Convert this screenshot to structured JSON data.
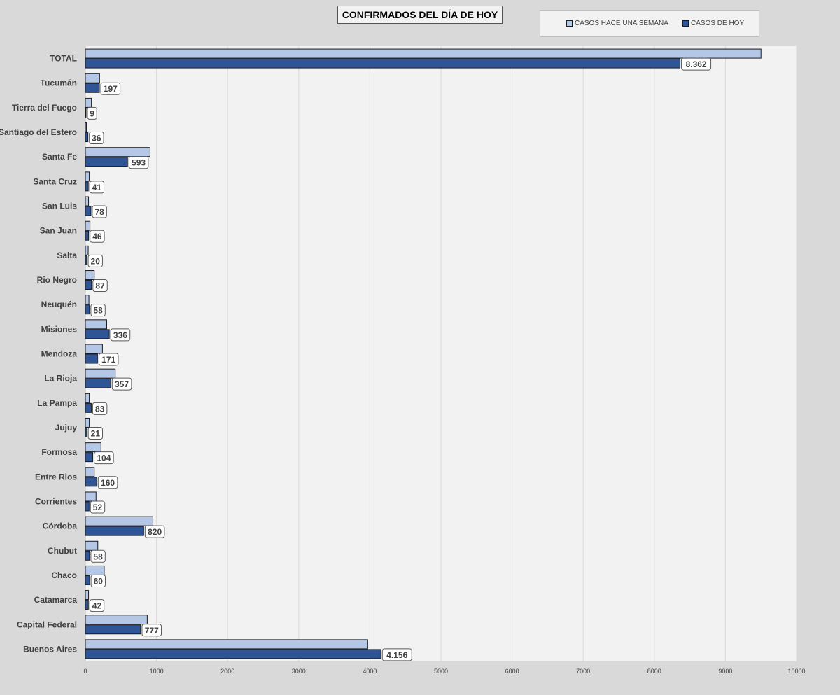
{
  "chart_data": {
    "type": "bar",
    "orientation": "horizontal",
    "title": "CONFIRMADOS DEL DÍA DE HOY",
    "categories": [
      "TOTAL",
      "Tucumán",
      "Tierra del Fuego",
      "Santiago del Estero",
      "Santa Fe",
      "Santa Cruz",
      "San Luis",
      "San Juan",
      "Salta",
      "Rio Negro",
      "Neuquén",
      "Misiones",
      "Mendoza",
      "La Rioja",
      "La Pampa",
      "Jujuy",
      "Formosa",
      "Entre Rios",
      "Corrientes",
      "Córdoba",
      "Chubut",
      "Chaco",
      "Catamarca",
      "Capital Federal",
      "Buenos Aires"
    ],
    "series": [
      {
        "name": "CASOS HACE UNA SEMANA",
        "color": "#b4c7e7",
        "values": [
          9500,
          200,
          85,
          15,
          910,
          55,
          45,
          65,
          40,
          125,
          50,
          300,
          240,
          420,
          55,
          55,
          220,
          125,
          150,
          950,
          175,
          265,
          45,
          870,
          3970
        ]
      },
      {
        "name": "CASOS DE HOY",
        "color": "#2f5597",
        "values": [
          8362,
          197,
          9,
          36,
          593,
          41,
          78,
          46,
          20,
          87,
          58,
          336,
          171,
          357,
          83,
          21,
          104,
          160,
          52,
          820,
          58,
          60,
          42,
          777,
          4156
        ]
      }
    ],
    "data_labels": [
      "8.362",
      "197",
      "9",
      "36",
      "593",
      "41",
      "78",
      "46",
      "20",
      "87",
      "58",
      "336",
      "171",
      "357",
      "83",
      "21",
      "104",
      "160",
      "52",
      "820",
      "58",
      "60",
      "42",
      "777",
      "4.156"
    ],
    "xlim": [
      0,
      10000
    ],
    "xticks": [
      "0",
      "1000",
      "2000",
      "3000",
      "4000",
      "5000",
      "6000",
      "7000",
      "8000",
      "9000",
      "10000"
    ],
    "xtick_values": [
      0,
      1000,
      2000,
      3000,
      4000,
      5000,
      6000,
      7000,
      8000,
      9000,
      10000
    ],
    "grid": true,
    "legend_position": "top-right",
    "plot_background": "#f2f2f2",
    "grid_color": "#d9d9d9"
  }
}
